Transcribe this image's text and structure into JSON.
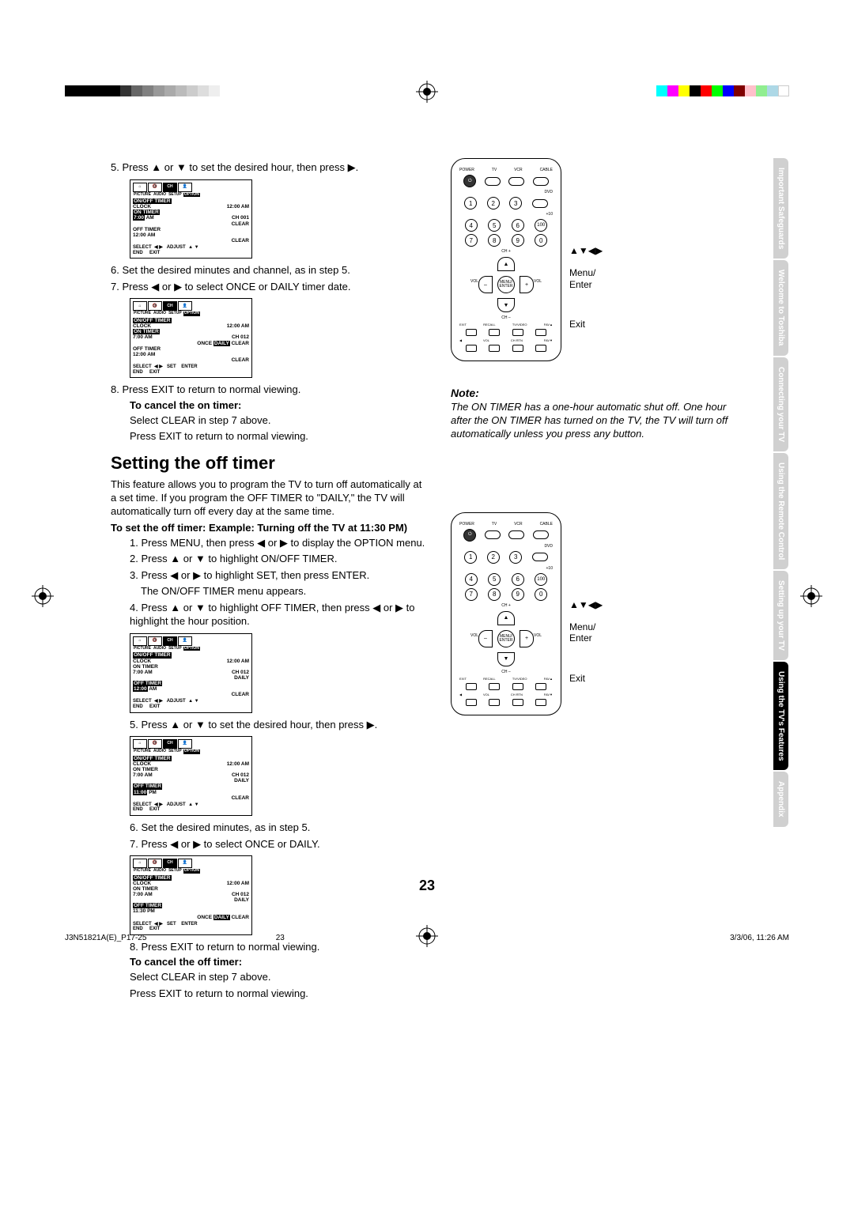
{
  "colorbar_left": [
    "#000000",
    "#000000",
    "#000000",
    "#000000",
    "#000000",
    "#333333",
    "#666666",
    "#808080",
    "#999999",
    "#aaaaaa",
    "#bbbbbb",
    "#cccccc",
    "#dddddd",
    "#eeeeee"
  ],
  "colorbar_right": [
    "#00ffff",
    "#ff00ff",
    "#ffff00",
    "#000000",
    "#ff0000",
    "#00ff00",
    "#0000ff",
    "#800000",
    "#ffc0cb",
    "#90ee90",
    "#add8e6",
    "#ffffff"
  ],
  "steps_top": {
    "s5": "5. Press ▲ or ▼ to set the desired hour, then press ▶.",
    "s6": "6. Set the desired minutes and channel, as in step 5.",
    "s7": "7. Press ◀ or ▶ to select ONCE or DAILY timer date.",
    "s8": "8. Press EXIT to return to normal viewing."
  },
  "cancel_on": {
    "title": "To cancel the on timer:",
    "l1": "Select CLEAR in step 7 above.",
    "l2": "Press EXIT to return to normal viewing."
  },
  "section": {
    "title": "Setting the off timer",
    "intro": "This feature allows you to program the TV to turn off automatically at a set time. If you program the OFF TIMER to \"DAILY,\" the TV will automatically turn off every day at the same time.",
    "subtitle": "To set the off timer: Example: Turning off the TV at 11:30 PM)",
    "s1": "1. Press MENU, then press ◀ or ▶ to display the OPTION menu.",
    "s2": "2. Press ▲ or ▼ to highlight ON/OFF TIMER.",
    "s3a": "3. Press ◀ or ▶ to highlight SET, then press ENTER.",
    "s3b": "The ON/OFF TIMER menu appears.",
    "s4": "4. Press ▲ or ▼ to highlight OFF TIMER, then press ◀ or ▶ to highlight the hour position.",
    "s5": "5. Press ▲ or ▼ to set the desired hour, then press ▶.",
    "s6": "6. Set the desired minutes, as in step 5.",
    "s7": "7. Press ◀ or ▶ to select ONCE or DAILY.",
    "s8": "8. Press EXIT to return to normal viewing."
  },
  "cancel_off": {
    "title": "To cancel the off timer:",
    "l1": "Select CLEAR in step 7 above.",
    "l2": "Press EXIT to return to normal viewing."
  },
  "menu": {
    "tabs": [
      "PICTURE",
      "AUDIO",
      "SETUP",
      "OPTION"
    ],
    "onoff": "ON/OFF TIMER",
    "clock": "CLOCK",
    "clock_v": "12:00 AM",
    "ontimer": "ON TIMER",
    "ontimer_t": "7:00 AM",
    "ch001": "CH 001",
    "ch012": "CH 012",
    "offtimer": "OFF TIMER",
    "off_1200": "12:00 AM",
    "off_1100": "11:00 PM",
    "off_1130": "11:30 PM",
    "daily": "DAILY",
    "once_daily_clear": "ONCE  DAILY CLEAR",
    "clear": "CLEAR",
    "select": "SELECT",
    "end": "END",
    "adjust": "ADJUST",
    "set": "SET",
    "exit": "EXIT",
    "enter": "ENTER",
    "lr": "◀ ▶",
    "ud": "▲ ▼"
  },
  "remote": {
    "top_labels": [
      "POWER",
      "TV",
      "VCR",
      "CABLE"
    ],
    "dvd": "DVD",
    "plus10": "+10",
    "num100": "100",
    "chp": "CH +",
    "chm": "CH –",
    "volp": "+",
    "volm": "–",
    "vol": "VOL",
    "menu_enter": "MENU/\nENTER",
    "bottom": [
      "EXIT",
      "RECALL",
      "TV/VIDEO",
      "FAV▲"
    ],
    "bottom2": [
      "◀",
      "VOL",
      "CH RTN",
      "FAV▼"
    ],
    "side_arrows": "▲▼◀▶",
    "side_menu": "Menu/\nEnter",
    "side_exit": "Exit"
  },
  "note": {
    "title": "Note:",
    "text": "The ON TIMER has a one-hour automatic shut off. One hour after the ON TIMER has turned on the TV, the TV will turn off automatically unless you press any button."
  },
  "tabs": [
    {
      "t": "Important Safeguards",
      "a": false
    },
    {
      "t": "Welcome to Toshiba",
      "a": false
    },
    {
      "t": "Connecting your TV",
      "a": false
    },
    {
      "t": "Using the Remote Control",
      "a": false
    },
    {
      "t": "Setting up your TV",
      "a": false
    },
    {
      "t": "Using the TV's Features",
      "a": true
    },
    {
      "t": "Appendix",
      "a": false
    }
  ],
  "page_number": "23",
  "footer": {
    "left": "J3N51821A(E)_P17-25",
    "mid": "23",
    "right": "3/3/06, 11:26 AM"
  }
}
